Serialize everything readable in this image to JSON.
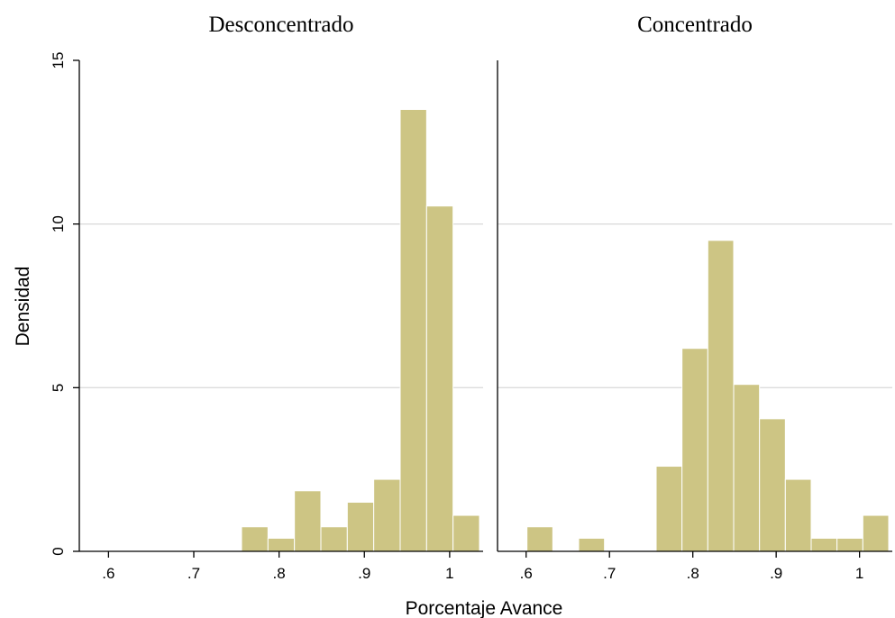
{
  "chart_data": {
    "type": "bar",
    "xlabel": "Porcentaje Avance",
    "ylabel": "Densidad",
    "ylim": [
      0,
      15
    ],
    "yticks": [
      0,
      5,
      10,
      15
    ],
    "ytick_labels": [
      "0",
      "5",
      "10",
      "15"
    ],
    "xlim": [
      0.57,
      1.035
    ],
    "xticks": [
      0.6,
      0.7,
      0.8,
      0.9,
      1.0
    ],
    "xtick_labels": [
      ".6",
      ".7",
      ".8",
      ".9",
      "1"
    ],
    "grid": true,
    "panels": [
      {
        "title": "Desconcentrado",
        "bin_edges": [
          0.756,
          0.787,
          0.818,
          0.849,
          0.88,
          0.911,
          0.942,
          0.973,
          1.004,
          1.035
        ],
        "values": [
          0.75,
          0.4,
          1.85,
          0.75,
          1.5,
          2.2,
          13.5,
          10.55,
          1.1
        ]
      },
      {
        "title": "Concentrado",
        "bin_edges": [
          0.601,
          0.632,
          0.663,
          0.694,
          0.725,
          0.756,
          0.787,
          0.818,
          0.849,
          0.88,
          0.911,
          0.942,
          0.973,
          1.004,
          1.035
        ],
        "values": [
          0.75,
          0,
          0.4,
          0,
          0,
          2.6,
          6.2,
          9.5,
          5.1,
          4.05,
          2.2,
          0.4,
          0.4,
          1.1
        ]
      }
    ]
  }
}
